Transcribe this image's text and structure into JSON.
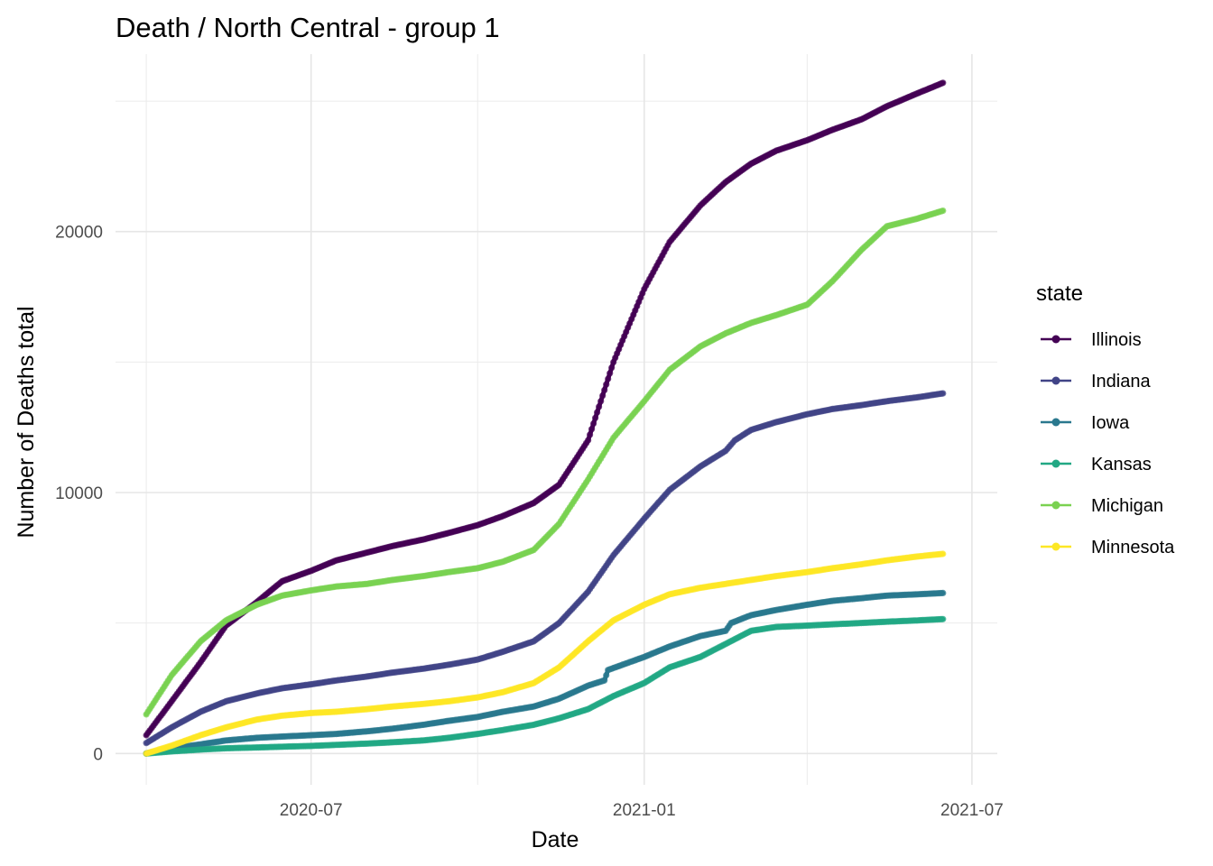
{
  "chart_data": {
    "type": "line",
    "title": "Death / North Central - group 1",
    "xlabel": "Date",
    "ylabel": "Number of Deaths total",
    "x_ticks": [
      "2020-07",
      "2021-01",
      "2021-07"
    ],
    "y_ticks": [
      0,
      10000,
      20000
    ],
    "xlim": [
      "2020-03-15",
      "2021-07-15"
    ],
    "ylim": [
      -1200,
      26800
    ],
    "grid": true,
    "legend": {
      "title": "state",
      "position": "right"
    },
    "series": [
      {
        "name": "Illinois",
        "color": "#440154",
        "points": [
          [
            "2020-04-01",
            700
          ],
          [
            "2020-04-15",
            2000
          ],
          [
            "2020-05-01",
            3500
          ],
          [
            "2020-05-15",
            4900
          ],
          [
            "2020-06-01",
            5800
          ],
          [
            "2020-06-15",
            6600
          ],
          [
            "2020-07-01",
            7000
          ],
          [
            "2020-07-15",
            7400
          ],
          [
            "2020-08-01",
            7700
          ],
          [
            "2020-08-15",
            7950
          ],
          [
            "2020-09-01",
            8200
          ],
          [
            "2020-09-15",
            8450
          ],
          [
            "2020-10-01",
            8750
          ],
          [
            "2020-10-15",
            9100
          ],
          [
            "2020-11-01",
            9600
          ],
          [
            "2020-11-15",
            10300
          ],
          [
            "2020-12-01",
            12000
          ],
          [
            "2020-12-15",
            15000
          ],
          [
            "2021-01-01",
            17800
          ],
          [
            "2021-01-15",
            19600
          ],
          [
            "2021-02-01",
            21000
          ],
          [
            "2021-02-15",
            21900
          ],
          [
            "2021-03-01",
            22600
          ],
          [
            "2021-03-15",
            23100
          ],
          [
            "2021-04-01",
            23500
          ],
          [
            "2021-04-15",
            23900
          ],
          [
            "2021-05-01",
            24300
          ],
          [
            "2021-05-15",
            24800
          ],
          [
            "2021-06-01",
            25300
          ],
          [
            "2021-06-15",
            25700
          ]
        ]
      },
      {
        "name": "Indiana",
        "color": "#414487",
        "points": [
          [
            "2020-04-01",
            400
          ],
          [
            "2020-04-15",
            1000
          ],
          [
            "2020-05-01",
            1600
          ],
          [
            "2020-05-15",
            2000
          ],
          [
            "2020-06-01",
            2300
          ],
          [
            "2020-06-15",
            2500
          ],
          [
            "2020-07-01",
            2650
          ],
          [
            "2020-07-15",
            2800
          ],
          [
            "2020-08-01",
            2950
          ],
          [
            "2020-08-15",
            3100
          ],
          [
            "2020-09-01",
            3250
          ],
          [
            "2020-09-15",
            3400
          ],
          [
            "2020-10-01",
            3600
          ],
          [
            "2020-10-15",
            3900
          ],
          [
            "2020-11-01",
            4300
          ],
          [
            "2020-11-15",
            5000
          ],
          [
            "2020-12-01",
            6200
          ],
          [
            "2020-12-15",
            7600
          ],
          [
            "2021-01-01",
            9000
          ],
          [
            "2021-01-15",
            10100
          ],
          [
            "2021-02-01",
            11000
          ],
          [
            "2021-02-15",
            11600
          ],
          [
            "2021-02-20",
            12000
          ],
          [
            "2021-03-01",
            12400
          ],
          [
            "2021-03-15",
            12700
          ],
          [
            "2021-04-01",
            13000
          ],
          [
            "2021-04-15",
            13200
          ],
          [
            "2021-05-01",
            13350
          ],
          [
            "2021-05-15",
            13500
          ],
          [
            "2021-06-01",
            13650
          ],
          [
            "2021-06-15",
            13800
          ]
        ]
      },
      {
        "name": "Iowa",
        "color": "#2a788e",
        "points": [
          [
            "2020-04-01",
            0
          ],
          [
            "2020-04-15",
            200
          ],
          [
            "2020-05-01",
            350
          ],
          [
            "2020-05-15",
            500
          ],
          [
            "2020-06-01",
            600
          ],
          [
            "2020-06-15",
            650
          ],
          [
            "2020-07-01",
            700
          ],
          [
            "2020-07-15",
            750
          ],
          [
            "2020-08-01",
            850
          ],
          [
            "2020-08-15",
            950
          ],
          [
            "2020-09-01",
            1100
          ],
          [
            "2020-09-15",
            1250
          ],
          [
            "2020-10-01",
            1400
          ],
          [
            "2020-10-15",
            1600
          ],
          [
            "2020-11-01",
            1800
          ],
          [
            "2020-11-15",
            2100
          ],
          [
            "2020-12-01",
            2600
          ],
          [
            "2020-12-10",
            2800
          ],
          [
            "2020-12-12",
            3200
          ],
          [
            "2021-01-01",
            3700
          ],
          [
            "2021-01-15",
            4100
          ],
          [
            "2021-02-01",
            4500
          ],
          [
            "2021-02-15",
            4700
          ],
          [
            "2021-02-18",
            5000
          ],
          [
            "2021-03-01",
            5300
          ],
          [
            "2021-03-15",
            5500
          ],
          [
            "2021-04-01",
            5700
          ],
          [
            "2021-04-15",
            5850
          ],
          [
            "2021-05-01",
            5950
          ],
          [
            "2021-05-15",
            6050
          ],
          [
            "2021-06-01",
            6100
          ],
          [
            "2021-06-15",
            6150
          ]
        ]
      },
      {
        "name": "Kansas",
        "color": "#22a884",
        "points": [
          [
            "2020-04-01",
            0
          ],
          [
            "2020-04-15",
            80
          ],
          [
            "2020-05-01",
            150
          ],
          [
            "2020-05-15",
            200
          ],
          [
            "2020-06-01",
            230
          ],
          [
            "2020-06-15",
            260
          ],
          [
            "2020-07-01",
            290
          ],
          [
            "2020-07-15",
            330
          ],
          [
            "2020-08-01",
            380
          ],
          [
            "2020-08-15",
            430
          ],
          [
            "2020-09-01",
            500
          ],
          [
            "2020-09-15",
            600
          ],
          [
            "2020-10-01",
            750
          ],
          [
            "2020-10-15",
            900
          ],
          [
            "2020-11-01",
            1100
          ],
          [
            "2020-11-15",
            1350
          ],
          [
            "2020-12-01",
            1700
          ],
          [
            "2020-12-15",
            2200
          ],
          [
            "2021-01-01",
            2700
          ],
          [
            "2021-01-15",
            3300
          ],
          [
            "2021-02-01",
            3700
          ],
          [
            "2021-02-15",
            4200
          ],
          [
            "2021-03-01",
            4700
          ],
          [
            "2021-03-15",
            4850
          ],
          [
            "2021-04-01",
            4900
          ],
          [
            "2021-04-15",
            4950
          ],
          [
            "2021-05-01",
            5000
          ],
          [
            "2021-05-15",
            5050
          ],
          [
            "2021-06-01",
            5100
          ],
          [
            "2021-06-15",
            5150
          ]
        ]
      },
      {
        "name": "Michigan",
        "color": "#7ad151",
        "points": [
          [
            "2020-04-01",
            1500
          ],
          [
            "2020-04-15",
            3000
          ],
          [
            "2020-05-01",
            4300
          ],
          [
            "2020-05-15",
            5100
          ],
          [
            "2020-06-01",
            5700
          ],
          [
            "2020-06-15",
            6050
          ],
          [
            "2020-07-01",
            6250
          ],
          [
            "2020-07-15",
            6400
          ],
          [
            "2020-08-01",
            6500
          ],
          [
            "2020-08-15",
            6650
          ],
          [
            "2020-09-01",
            6800
          ],
          [
            "2020-09-15",
            6950
          ],
          [
            "2020-10-01",
            7100
          ],
          [
            "2020-10-15",
            7350
          ],
          [
            "2020-11-01",
            7800
          ],
          [
            "2020-11-15",
            8800
          ],
          [
            "2020-12-01",
            10500
          ],
          [
            "2020-12-15",
            12100
          ],
          [
            "2021-01-01",
            13500
          ],
          [
            "2021-01-15",
            14700
          ],
          [
            "2021-02-01",
            15600
          ],
          [
            "2021-02-15",
            16100
          ],
          [
            "2021-03-01",
            16500
          ],
          [
            "2021-03-15",
            16800
          ],
          [
            "2021-04-01",
            17200
          ],
          [
            "2021-04-15",
            18100
          ],
          [
            "2021-05-01",
            19300
          ],
          [
            "2021-05-15",
            20200
          ],
          [
            "2021-06-01",
            20500
          ],
          [
            "2021-06-15",
            20800
          ]
        ]
      },
      {
        "name": "Minnesota",
        "color": "#fde725",
        "points": [
          [
            "2020-04-01",
            0
          ],
          [
            "2020-04-15",
            300
          ],
          [
            "2020-05-01",
            700
          ],
          [
            "2020-05-15",
            1000
          ],
          [
            "2020-06-01",
            1300
          ],
          [
            "2020-06-15",
            1450
          ],
          [
            "2020-07-01",
            1550
          ],
          [
            "2020-07-15",
            1600
          ],
          [
            "2020-08-01",
            1700
          ],
          [
            "2020-08-15",
            1800
          ],
          [
            "2020-09-01",
            1900
          ],
          [
            "2020-09-15",
            2000
          ],
          [
            "2020-10-01",
            2150
          ],
          [
            "2020-10-15",
            2350
          ],
          [
            "2020-11-01",
            2700
          ],
          [
            "2020-11-15",
            3300
          ],
          [
            "2020-12-01",
            4300
          ],
          [
            "2020-12-15",
            5100
          ],
          [
            "2021-01-01",
            5700
          ],
          [
            "2021-01-15",
            6100
          ],
          [
            "2021-02-01",
            6350
          ],
          [
            "2021-02-15",
            6500
          ],
          [
            "2021-03-01",
            6650
          ],
          [
            "2021-03-15",
            6800
          ],
          [
            "2021-04-01",
            6950
          ],
          [
            "2021-04-15",
            7100
          ],
          [
            "2021-05-01",
            7250
          ],
          [
            "2021-05-15",
            7400
          ],
          [
            "2021-06-01",
            7550
          ],
          [
            "2021-06-15",
            7650
          ]
        ]
      }
    ]
  }
}
